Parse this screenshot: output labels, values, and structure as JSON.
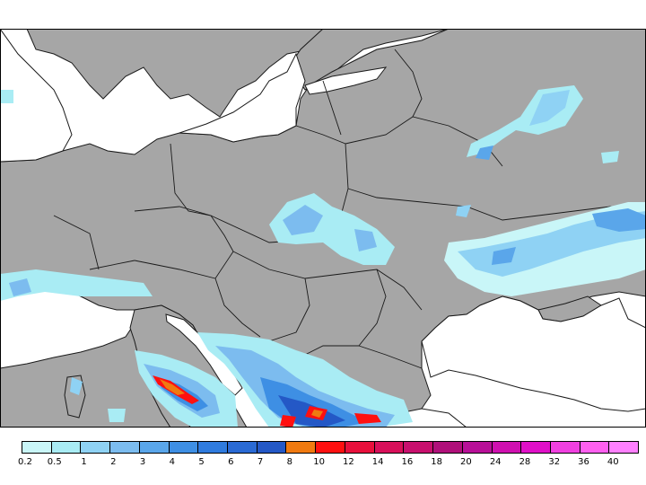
{
  "colors": {
    "land": "#a6a6a6",
    "sea": "#ffffff",
    "border": "#1a1a1a",
    "frame": "#000000"
  },
  "legend": {
    "swatch_colors": [
      "#c9f6f8",
      "#a9ecf4",
      "#8fd2f4",
      "#7cbcef",
      "#5aa6ea",
      "#3e8fe4",
      "#2f7bde",
      "#2a6ad4",
      "#2458c6",
      "#f07a10",
      "#ff1010",
      "#e8103c",
      "#d8105a",
      "#c8106e",
      "#b0107a",
      "#b81098",
      "#d010b0",
      "#e010c8",
      "#f040e0",
      "#ff60f0",
      "#ff80ff"
    ],
    "labels": [
      "0.2",
      "0.5",
      "1",
      "2",
      "3",
      "4",
      "5",
      "6",
      "7",
      "8",
      "10",
      "12",
      "14",
      "16",
      "18",
      "20",
      "24",
      "28",
      "32",
      "36",
      "40"
    ]
  }
}
